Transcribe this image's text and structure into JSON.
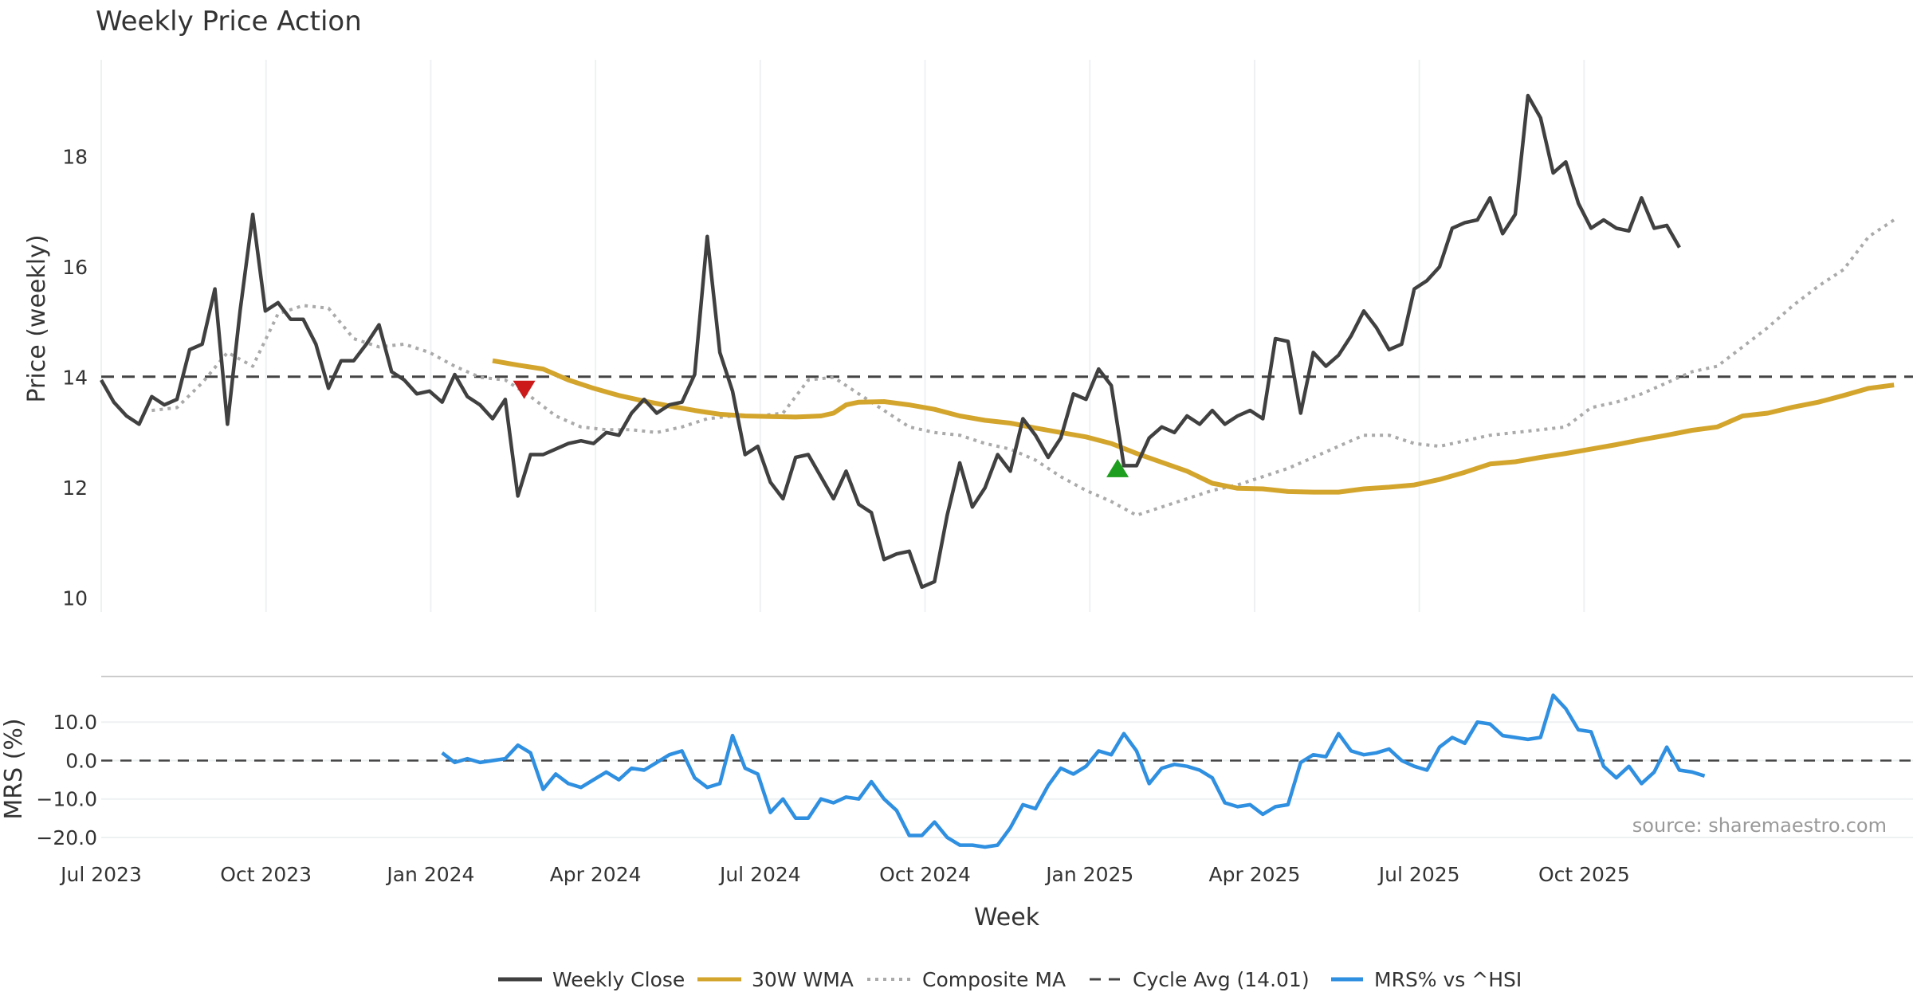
{
  "chart_data": {
    "title": "Weekly Price Action",
    "type": "line",
    "xlabel": "Week",
    "x_ticks": [
      "Jul 2023",
      "Oct 2023",
      "Jan 2024",
      "Apr 2024",
      "Jul 2024",
      "Oct 2024",
      "Jan 2025",
      "Apr 2025",
      "Jul 2025",
      "Oct 2025"
    ],
    "x_range_weeks": [
      0,
      143.5
    ],
    "price_panel": {
      "ylabel": "Price (weekly)",
      "ylim": [
        9.75,
        19.75
      ],
      "y_ticks": [
        "10",
        "12",
        "14",
        "16",
        "18"
      ],
      "y_tick_values": [
        10,
        12,
        14,
        16,
        18
      ],
      "weekly_close": [
        13.95,
        13.55,
        13.3,
        13.15,
        13.65,
        13.5,
        13.6,
        14.5,
        14.6,
        15.6,
        13.15,
        15.2,
        16.95,
        15.2,
        15.35,
        15.05,
        15.05,
        14.6,
        13.8,
        14.3,
        14.3,
        14.6,
        14.95,
        14.1,
        13.95,
        13.7,
        13.75,
        13.55,
        14.05,
        13.65,
        13.5,
        13.25,
        13.6,
        11.85,
        12.6,
        12.6,
        12.7,
        12.8,
        12.85,
        12.8,
        13.0,
        12.95,
        13.35,
        13.6,
        13.35,
        13.5,
        13.55,
        14.05,
        16.55,
        14.45,
        13.75,
        12.6,
        12.75,
        12.1,
        11.8,
        12.55,
        12.6,
        12.2,
        11.8,
        12.3,
        11.7,
        11.55,
        10.7,
        10.8,
        10.85,
        10.2,
        10.3,
        11.5,
        12.45,
        11.65,
        12.0,
        12.6,
        12.3,
        13.25,
        12.95,
        12.55,
        12.9,
        13.7,
        13.6,
        14.15,
        13.85,
        12.4,
        12.4,
        12.9,
        13.1,
        13.0,
        13.3,
        13.15,
        13.4,
        13.15,
        13.3,
        13.4,
        13.25,
        14.7,
        14.65,
        13.35,
        14.45,
        14.2,
        14.4,
        14.75,
        15.2,
        14.9,
        14.5,
        14.6,
        15.6,
        15.75,
        16.0,
        16.7,
        16.8,
        16.85,
        17.25,
        16.6,
        16.95,
        19.1,
        18.7,
        17.7,
        17.9,
        17.15,
        16.7,
        16.85,
        16.7,
        16.65,
        17.25,
        16.7,
        16.75,
        16.35
      ],
      "wma_30w": [
        {
          "w": 31,
          "v": 14.3
        },
        {
          "w": 33,
          "v": 14.22
        },
        {
          "w": 35,
          "v": 14.15
        },
        {
          "w": 37,
          "v": 13.95
        },
        {
          "w": 39,
          "v": 13.8
        },
        {
          "w": 41,
          "v": 13.67
        },
        {
          "w": 43,
          "v": 13.57
        },
        {
          "w": 45,
          "v": 13.48
        },
        {
          "w": 47,
          "v": 13.4
        },
        {
          "w": 49,
          "v": 13.33
        },
        {
          "w": 51,
          "v": 13.3
        },
        {
          "w": 53,
          "v": 13.29
        },
        {
          "w": 55,
          "v": 13.28
        },
        {
          "w": 57,
          "v": 13.3
        },
        {
          "w": 58,
          "v": 13.35
        },
        {
          "w": 59,
          "v": 13.5
        },
        {
          "w": 60,
          "v": 13.55
        },
        {
          "w": 62,
          "v": 13.56
        },
        {
          "w": 64,
          "v": 13.5
        },
        {
          "w": 66,
          "v": 13.42
        },
        {
          "w": 68,
          "v": 13.3
        },
        {
          "w": 70,
          "v": 13.22
        },
        {
          "w": 72,
          "v": 13.17
        },
        {
          "w": 74,
          "v": 13.08
        },
        {
          "w": 76,
          "v": 13.0
        },
        {
          "w": 78,
          "v": 12.92
        },
        {
          "w": 80,
          "v": 12.8
        },
        {
          "w": 82,
          "v": 12.62
        },
        {
          "w": 84,
          "v": 12.46
        },
        {
          "w": 86,
          "v": 12.3
        },
        {
          "w": 88,
          "v": 12.08
        },
        {
          "w": 90,
          "v": 11.99
        },
        {
          "w": 92,
          "v": 11.98
        },
        {
          "w": 94,
          "v": 11.93
        },
        {
          "w": 96,
          "v": 11.92
        },
        {
          "w": 98,
          "v": 11.92
        },
        {
          "w": 100,
          "v": 11.98
        },
        {
          "w": 102,
          "v": 12.01
        },
        {
          "w": 104,
          "v": 12.05
        },
        {
          "w": 106,
          "v": 12.15
        },
        {
          "w": 108,
          "v": 12.28
        },
        {
          "w": 110,
          "v": 12.43
        },
        {
          "w": 112,
          "v": 12.47
        },
        {
          "w": 114,
          "v": 12.55
        }
      ],
      "wma_30w_tail": [
        {
          "w": 114,
          "v": 12.55
        },
        {
          "w": 116,
          "v": 12.62
        },
        {
          "w": 118,
          "v": 12.7
        },
        {
          "w": 120,
          "v": 12.78
        },
        {
          "w": 122,
          "v": 12.87
        },
        {
          "w": 124,
          "v": 12.95
        },
        {
          "w": 126,
          "v": 13.04
        },
        {
          "w": 128,
          "v": 13.1
        },
        {
          "w": 130,
          "v": 13.3
        },
        {
          "w": 132,
          "v": 13.35
        },
        {
          "w": 134,
          "v": 13.46
        },
        {
          "w": 136,
          "v": 13.55
        },
        {
          "w": 138,
          "v": 13.67
        },
        {
          "w": 140,
          "v": 13.8
        },
        {
          "w": 142,
          "v": 13.86
        }
      ],
      "composite_ma": [
        {
          "w": 4,
          "v": 13.4
        },
        {
          "w": 6,
          "v": 13.45
        },
        {
          "w": 8,
          "v": 13.9
        },
        {
          "w": 10,
          "v": 14.45
        },
        {
          "w": 12,
          "v": 14.2
        },
        {
          "w": 14,
          "v": 15.15
        },
        {
          "w": 16,
          "v": 15.3
        },
        {
          "w": 18,
          "v": 15.25
        },
        {
          "w": 20,
          "v": 14.7
        },
        {
          "w": 22,
          "v": 14.55
        },
        {
          "w": 24,
          "v": 14.6
        },
        {
          "w": 26,
          "v": 14.45
        },
        {
          "w": 28,
          "v": 14.2
        },
        {
          "w": 30,
          "v": 14.0
        },
        {
          "w": 32,
          "v": 13.95
        },
        {
          "w": 34,
          "v": 13.65
        },
        {
          "w": 36,
          "v": 13.3
        },
        {
          "w": 38,
          "v": 13.1
        },
        {
          "w": 40,
          "v": 13.05
        },
        {
          "w": 42,
          "v": 13.05
        },
        {
          "w": 44,
          "v": 13.0
        },
        {
          "w": 46,
          "v": 13.1
        },
        {
          "w": 48,
          "v": 13.25
        },
        {
          "w": 50,
          "v": 13.3
        },
        {
          "w": 52,
          "v": 13.3
        },
        {
          "w": 54,
          "v": 13.35
        },
        {
          "w": 56,
          "v": 13.95
        },
        {
          "w": 58,
          "v": 14.0
        },
        {
          "w": 60,
          "v": 13.7
        },
        {
          "w": 62,
          "v": 13.4
        },
        {
          "w": 64,
          "v": 13.1
        },
        {
          "w": 66,
          "v": 13.0
        },
        {
          "w": 68,
          "v": 12.95
        },
        {
          "w": 70,
          "v": 12.8
        },
        {
          "w": 72,
          "v": 12.7
        },
        {
          "w": 74,
          "v": 12.5
        },
        {
          "w": 76,
          "v": 12.2
        },
        {
          "w": 78,
          "v": 11.95
        },
        {
          "w": 80,
          "v": 11.75
        },
        {
          "w": 82,
          "v": 11.5
        },
        {
          "w": 84,
          "v": 11.65
        },
        {
          "w": 86,
          "v": 11.8
        },
        {
          "w": 88,
          "v": 11.95
        },
        {
          "w": 90,
          "v": 12.05
        },
        {
          "w": 92,
          "v": 12.2
        },
        {
          "w": 94,
          "v": 12.35
        },
        {
          "w": 96,
          "v": 12.55
        },
        {
          "w": 98,
          "v": 12.75
        },
        {
          "w": 100,
          "v": 12.95
        },
        {
          "w": 102,
          "v": 12.95
        },
        {
          "w": 104,
          "v": 12.8
        },
        {
          "w": 106,
          "v": 12.75
        },
        {
          "w": 108,
          "v": 12.85
        },
        {
          "w": 110,
          "v": 12.95
        },
        {
          "w": 112,
          "v": 13.0
        },
        {
          "w": 114,
          "v": 13.05
        },
        {
          "w": 116,
          "v": 13.1
        },
        {
          "w": 118,
          "v": 13.45
        },
        {
          "w": 120,
          "v": 13.55
        },
        {
          "w": 122,
          "v": 13.7
        },
        {
          "w": 124,
          "v": 13.9
        },
        {
          "w": 126,
          "v": 14.1
        },
        {
          "w": 128,
          "v": 14.2
        },
        {
          "w": 130,
          "v": 14.55
        },
        {
          "w": 132,
          "v": 14.9
        },
        {
          "w": 134,
          "v": 15.3
        },
        {
          "w": 136,
          "v": 15.65
        },
        {
          "w": 138,
          "v": 15.95
        },
        {
          "w": 140,
          "v": 16.55
        },
        {
          "w": 142,
          "v": 16.85
        }
      ],
      "cycle_avg": 14.01,
      "sell_signal": {
        "w": 33.5,
        "v": 13.78
      },
      "buy_signal": {
        "w": 80.5,
        "v": 12.35
      }
    },
    "mrs_panel": {
      "ylabel": "MRS (%)",
      "ylim": [
        -22.5,
        20
      ],
      "y_ticks": [
        "10.0",
        "0.0",
        "−10.0",
        "−20.0"
      ],
      "y_tick_values": [
        10,
        0,
        -10,
        -20
      ],
      "start_week": 27,
      "mrs": [
        2.0,
        -0.5,
        0.5,
        -0.5,
        0.0,
        0.5,
        4.0,
        2.0,
        -7.5,
        -3.5,
        -6.0,
        -7.0,
        -5.0,
        -3.0,
        -5.0,
        -2.0,
        -2.5,
        -0.5,
        1.5,
        2.5,
        -4.5,
        -7.0,
        -6.0,
        6.5,
        -2.0,
        -3.5,
        -13.5,
        -10.0,
        -15.0,
        -15.0,
        -10.0,
        -11.0,
        -9.5,
        -10.0,
        -5.5,
        -10.0,
        -13.0,
        -19.5,
        -19.5,
        -16.0,
        -20.0,
        -22.0,
        -22.0,
        -22.5,
        -22.0,
        -17.5,
        -11.5,
        -12.5,
        -6.5,
        -2.0,
        -3.5,
        -1.5,
        2.5,
        1.5,
        7.0,
        2.5,
        -6.0,
        -2.0,
        -1.0,
        -1.5,
        -2.5,
        -4.5,
        -11.0,
        -12.0,
        -11.5,
        -14.0,
        -12.0,
        -11.5,
        -0.5,
        1.5,
        1.0,
        7.0,
        2.5,
        1.5,
        2.0,
        3.0,
        0.0,
        -1.5,
        -2.5,
        3.5,
        6.0,
        4.5,
        10.0,
        9.5,
        6.5,
        6.0,
        5.5,
        6.0,
        17.0,
        13.5,
        8.0,
        7.5,
        -1.5,
        -4.5,
        -1.5,
        -6.0,
        -3.0,
        3.5,
        -2.5,
        -3.0,
        -4.0
      ],
      "zero_line": 0
    },
    "legend": [
      "Weekly Close",
      "30W WMA",
      "Composite MA",
      "Cycle Avg (14.01)",
      "MRS% vs ^HSI"
    ],
    "source": "source: sharemaestro.com",
    "colors": {
      "close": "#404040",
      "wma": "#d4a52c",
      "composite": "#aaaaaa",
      "cycle": "#444444",
      "mrs": "#2f8fe0",
      "sell": "#cc1a1a",
      "buy": "#1e9e1e",
      "grid": "#eef1f2"
    }
  }
}
